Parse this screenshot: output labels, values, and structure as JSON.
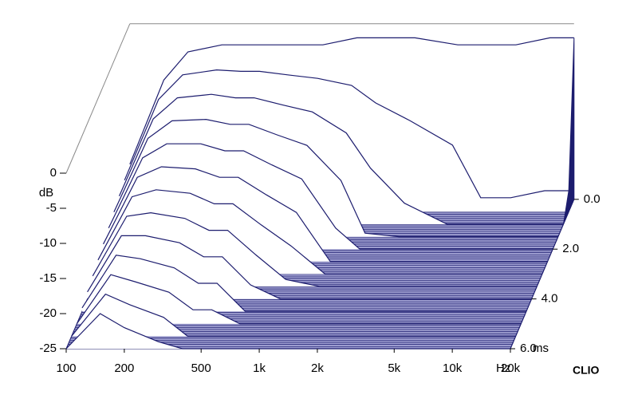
{
  "chart_data": {
    "type": "waterfall",
    "y_label": "dB",
    "x_label": "Hz",
    "z_label": "ms",
    "watermark": "CLIO",
    "log_x": true,
    "color": "#1c1c6e",
    "floor_color": "#9c9ccf",
    "x": [
      100,
      150,
      200,
      300,
      400,
      500,
      700,
      1000,
      1500,
      2000,
      3000,
      5000,
      7000,
      10000,
      15000,
      20000
    ],
    "z": [
      0,
      0.5,
      1,
      1.5,
      2,
      2.5,
      3,
      3.5,
      4,
      4.5,
      5,
      5.5,
      6
    ],
    "values": [
      [
        -20,
        -8,
        -4,
        -3,
        -3,
        -3,
        -3,
        -3,
        -2,
        -2,
        -2,
        -3,
        -3,
        -3,
        -2,
        -2
      ],
      [
        -20.5,
        -9,
        -5.5,
        -4.8,
        -5,
        -5,
        -5.5,
        -6,
        -7,
        -9.5,
        -12,
        -15.5,
        -23,
        -23,
        -22,
        -22
      ],
      [
        -21,
        -10,
        -7,
        -6.5,
        -7,
        -7,
        -8,
        -9,
        -12,
        -17,
        -22,
        -25,
        -25,
        -25,
        -25,
        -25
      ],
      [
        -21.5,
        -11,
        -8.5,
        -8.3,
        -9,
        -9,
        -10.5,
        -12,
        -17,
        -24.5,
        -25,
        -25,
        -25,
        -25,
        -25,
        -25
      ],
      [
        -22,
        -12,
        -10,
        -10,
        -11,
        -11,
        -13,
        -15,
        -22,
        -25,
        -25,
        -25,
        -25,
        -25,
        -25,
        -25
      ],
      [
        -22.5,
        -13,
        -11.5,
        -11.8,
        -13,
        -13,
        -15.5,
        -18,
        -25,
        -25,
        -25,
        -25,
        -25,
        -25,
        -25,
        -25
      ],
      [
        -23,
        -14,
        -13,
        -13.5,
        -15,
        -15,
        -18,
        -21,
        -25,
        -25,
        -25,
        -25,
        -25,
        -25,
        -25,
        -25
      ],
      [
        -23.5,
        -15,
        -14.5,
        -15.3,
        -17,
        -17,
        -20.5,
        -24,
        -25,
        -25,
        -25,
        -25,
        -25,
        -25,
        -25,
        -25
      ],
      [
        -24,
        -16,
        -16,
        -17,
        -19,
        -19,
        -23,
        -25,
        -25,
        -25,
        -25,
        -25,
        -25,
        -25,
        -25,
        -25
      ],
      [
        -24.5,
        -17,
        -17.5,
        -18.8,
        -21,
        -21,
        -25,
        -25,
        -25,
        -25,
        -25,
        -25,
        -25,
        -25,
        -25,
        -25
      ],
      [
        -25,
        -18,
        -19,
        -20.5,
        -23,
        -23,
        -25,
        -25,
        -25,
        -25,
        -25,
        -25,
        -25,
        -25,
        -25,
        -25
      ],
      [
        -25,
        -19,
        -20.5,
        -22.3,
        -25,
        -25,
        -25,
        -25,
        -25,
        -25,
        -25,
        -25,
        -25,
        -25,
        -25,
        -25
      ],
      [
        -25,
        -20,
        -22,
        -24,
        -25,
        -25,
        -25,
        -25,
        -25,
        -25,
        -25,
        -25,
        -25,
        -25,
        -25,
        -25
      ]
    ],
    "xlim": [
      100,
      20000
    ],
    "ylim": [
      -25,
      0
    ],
    "zlim": [
      0,
      6
    ],
    "xticks": [
      100,
      200,
      500,
      {
        "value": 1000,
        "label": "1k"
      },
      {
        "value": 2000,
        "label": "2k"
      },
      {
        "value": 5000,
        "label": "5k"
      },
      {
        "value": 10000,
        "label": "10k"
      },
      {
        "value": 20000,
        "label": "20k"
      }
    ],
    "yticks": [
      0,
      -5,
      -10,
      -15,
      -20,
      -25
    ],
    "zticks": [
      {
        "value": 0,
        "label": "0.0"
      },
      {
        "value": 2,
        "label": "2.0"
      },
      {
        "value": 4,
        "label": "4.0"
      },
      {
        "value": 6,
        "label": "6.0"
      }
    ]
  }
}
